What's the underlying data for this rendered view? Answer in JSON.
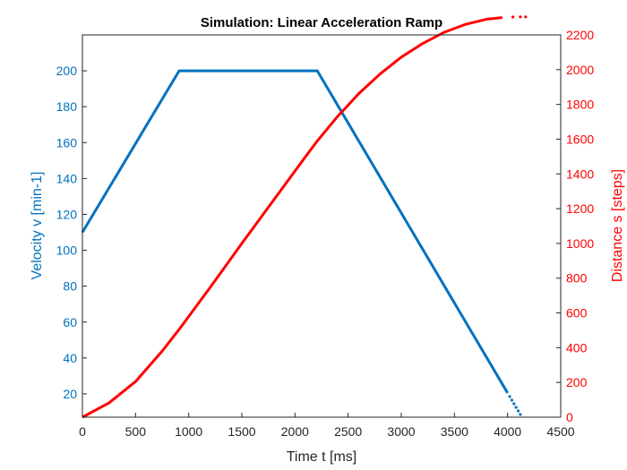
{
  "chart_data": {
    "type": "line",
    "title": "Simulation: Linear Acceleration Ramp",
    "xlabel": "Time t [ms]",
    "xlim": [
      0,
      4500
    ],
    "xticks": [
      "0",
      "500",
      "1000",
      "1500",
      "2000",
      "2500",
      "3000",
      "3500",
      "4000",
      "4500"
    ],
    "grid": false,
    "left_axis": {
      "ylabel": "Velocity v [min-1]",
      "ylim": [
        7,
        220
      ],
      "yticks": [
        "20",
        "40",
        "60",
        "80",
        "100",
        "120",
        "140",
        "160",
        "180",
        "200"
      ],
      "color": "#0072BD"
    },
    "right_axis": {
      "ylabel": "Distance s [steps]",
      "ylim": [
        0,
        2200
      ],
      "yticks": [
        "0",
        "200",
        "400",
        "600",
        "800",
        "1000",
        "1200",
        "1400",
        "1600",
        "1800",
        "2000",
        "2200"
      ],
      "color": "#FF0000"
    },
    "series": [
      {
        "axis": "left",
        "color": "#0072BD",
        "x": [
          0,
          910,
          2210,
          4000,
          4020,
          4040,
          4060,
          4080,
          4100,
          4120
        ],
        "y": [
          110,
          200,
          200,
          20.5,
          18.5,
          16.5,
          14.5,
          12.5,
          10.5,
          8.5
        ]
      },
      {
        "axis": "right",
        "color": "#FF0000",
        "x": [
          0,
          250,
          500,
          750,
          910,
          1200,
          1500,
          1800,
          2100,
          2210,
          2400,
          2600,
          2800,
          3000,
          3200,
          3400,
          3600,
          3800,
          3950,
          4050,
          4120,
          4170
        ],
        "y": [
          0,
          82,
          205,
          380,
          505,
          745,
          1000,
          1250,
          1500,
          1590,
          1730,
          1862,
          1975,
          2072,
          2150,
          2214,
          2260,
          2290,
          2300,
          2303,
          2304,
          2304
        ]
      }
    ]
  }
}
